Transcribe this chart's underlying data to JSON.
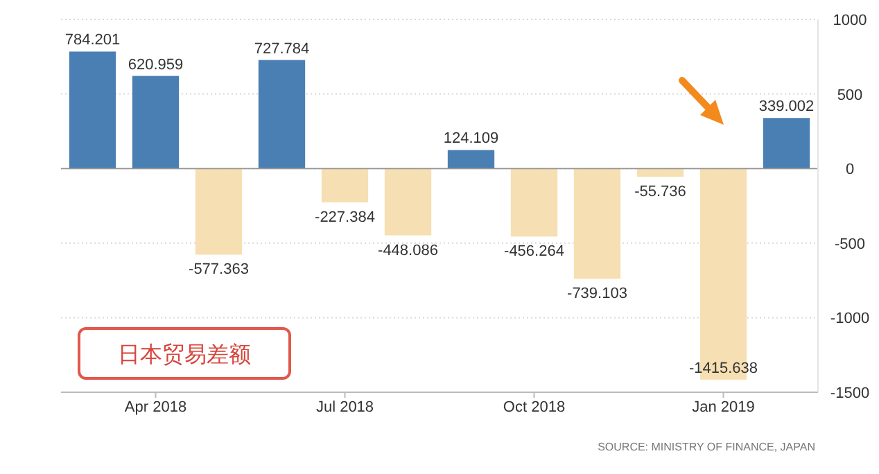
{
  "chart_data": {
    "type": "bar",
    "categories": [
      null,
      "Apr 2018",
      null,
      null,
      "Jul 2018",
      null,
      null,
      "Oct 2018",
      null,
      null,
      "Jan 2019",
      null
    ],
    "values": [
      784.201,
      620.959,
      -577.363,
      727.784,
      -227.384,
      -448.086,
      124.109,
      -456.264,
      -739.103,
      -55.736,
      -1415.638,
      339.002
    ],
    "colors": [
      "#4a7fb4",
      "#4a7fb4",
      "#f6dfb2",
      "#4a7fb4",
      "#f6dfb2",
      "#f6dfb2",
      "#4a7fb4",
      "#f6dfb2",
      "#f6dfb2",
      "#f6dfb2",
      "#f6dfb2",
      "#4a7fb4"
    ],
    "data_labels": true,
    "ylim": [
      -1500,
      1000
    ],
    "yticks": [
      -1500,
      -1000,
      -500,
      0,
      500,
      1000
    ],
    "grid": "y",
    "annotations": [
      "日本贸易差额",
      "SOURCE: MINISTRY OF FINANCE, JAPAN"
    ]
  }
}
